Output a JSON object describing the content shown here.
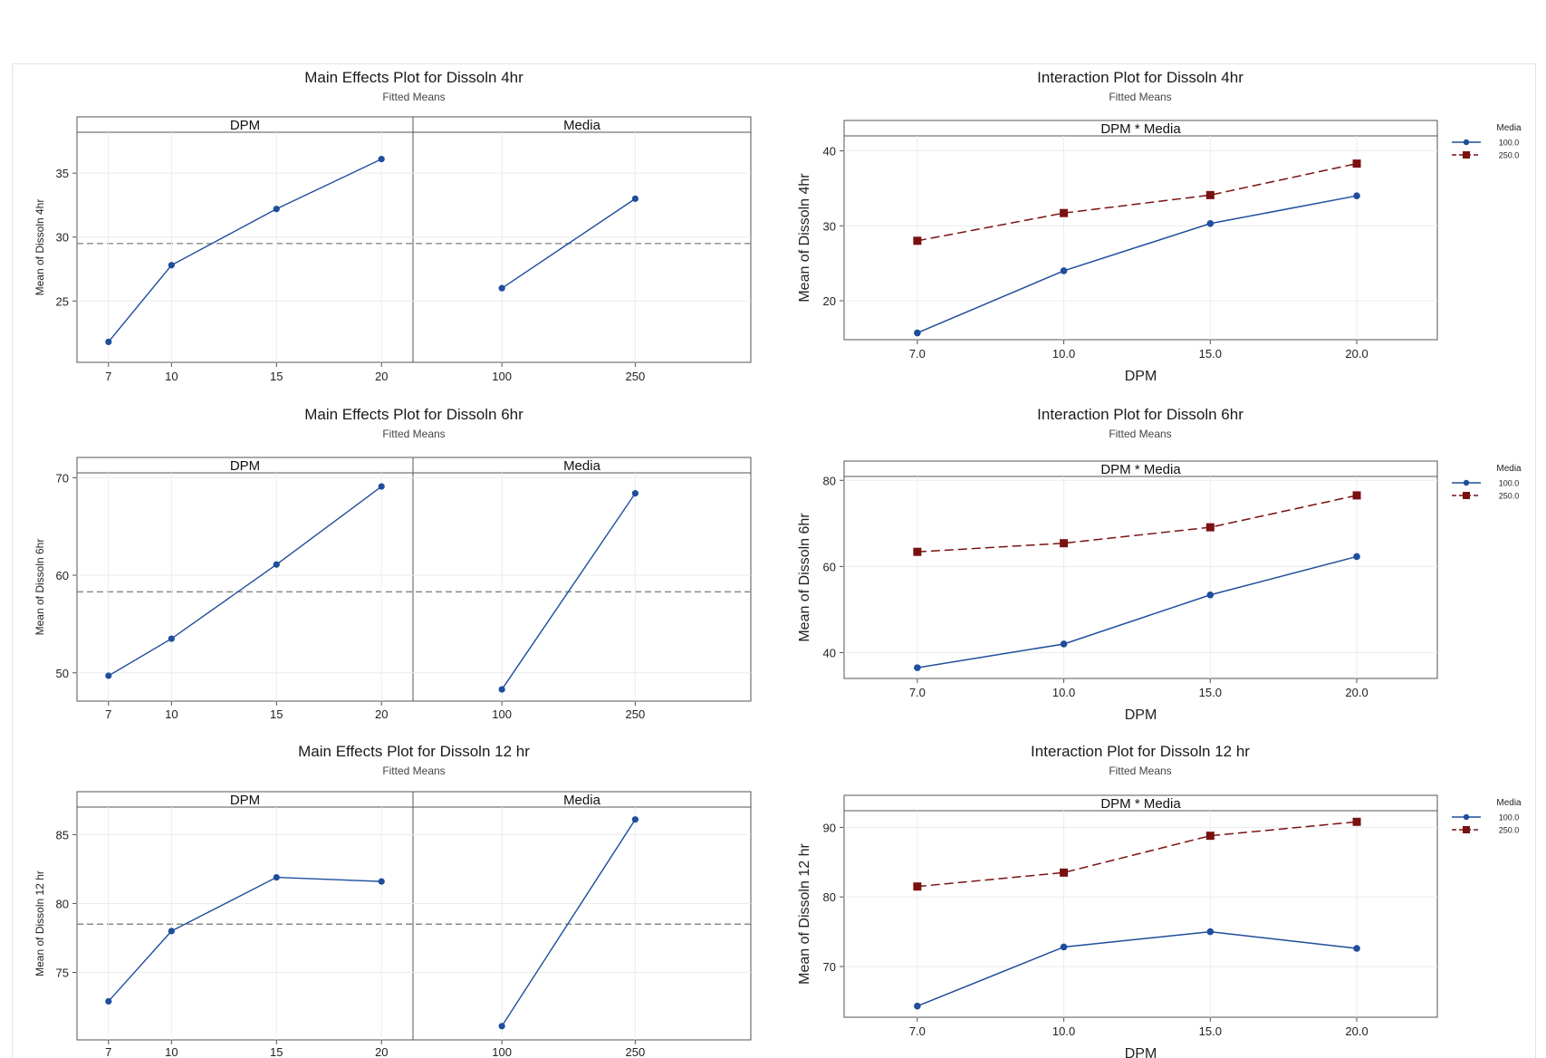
{
  "chart_data": [
    {
      "type": "line",
      "kind": "main_effects",
      "title": "Main Effects Plot for Dissoln 4hr",
      "subtitle": "Fitted Means",
      "ylabel": "Mean of Dissoln 4hr",
      "ylim": [
        20.2,
        38.2
      ],
      "yticks": [
        25,
        30,
        35
      ],
      "grand_mean": 29.5,
      "panels": [
        {
          "label": "DPM",
          "x": [
            7,
            10,
            15,
            20
          ],
          "xlim": [
            5.5,
            21.5
          ],
          "xtick_labels": [
            "7",
            "10",
            "15",
            "20"
          ],
          "values": [
            21.8,
            27.8,
            32.2,
            36.1
          ]
        },
        {
          "label": "Media",
          "x": [
            100,
            250
          ],
          "xlim": [
            0,
            380
          ],
          "xtick_labels": [
            "100",
            "250"
          ],
          "values": [
            26.0,
            33.0
          ]
        }
      ],
      "line_color": "#1f4e9c"
    },
    {
      "type": "line",
      "kind": "interaction",
      "title": "Interaction Plot for Dissoln 4hr",
      "subtitle": "Fitted Means",
      "panel_label": "DPM * Media",
      "xlabel": "DPM",
      "ylabel": "Mean of Dissoln 4hr",
      "ylim": [
        14.8,
        42.0
      ],
      "yticks": [
        20,
        30,
        40
      ],
      "categories": [
        "7.0",
        "10.0",
        "15.0",
        "20.0"
      ],
      "legend_title": "Media",
      "series": [
        {
          "name": "100.0",
          "values": [
            15.7,
            24.0,
            30.3,
            34.0
          ],
          "color": "#1f4e9c",
          "marker": "circle",
          "dash": false
        },
        {
          "name": "250.0",
          "values": [
            28.0,
            31.7,
            34.1,
            38.3
          ],
          "color": "#7a1111",
          "marker": "square",
          "dash": true
        }
      ]
    },
    {
      "type": "line",
      "kind": "main_effects",
      "title": "Main Effects Plot for Dissoln 6hr",
      "subtitle": "Fitted Means",
      "ylabel": "Mean of Dissoln 6hr",
      "ylim": [
        47.1,
        70.5
      ],
      "yticks": [
        50,
        60,
        70
      ],
      "grand_mean": 58.3,
      "panels": [
        {
          "label": "DPM",
          "x": [
            7,
            10,
            15,
            20
          ],
          "xlim": [
            5.5,
            21.5
          ],
          "xtick_labels": [
            "7",
            "10",
            "15",
            "20"
          ],
          "values": [
            49.7,
            53.5,
            61.1,
            69.1
          ]
        },
        {
          "label": "Media",
          "x": [
            100,
            250
          ],
          "xlim": [
            0,
            380
          ],
          "xtick_labels": [
            "100",
            "250"
          ],
          "values": [
            48.3,
            68.4
          ]
        }
      ],
      "line_color": "#1f4e9c"
    },
    {
      "type": "line",
      "kind": "interaction",
      "title": "Interaction Plot for Dissoln 6hr",
      "subtitle": "Fitted Means",
      "panel_label": "DPM * Media",
      "xlabel": "DPM",
      "ylabel": "Mean of Dissoln 6hr",
      "ylim": [
        34.0,
        80.9
      ],
      "yticks": [
        40,
        60,
        80
      ],
      "categories": [
        "7.0",
        "10.0",
        "15.0",
        "20.0"
      ],
      "legend_title": "Media",
      "series": [
        {
          "name": "100.0",
          "values": [
            36.5,
            42.0,
            53.4,
            62.3
          ],
          "color": "#1f4e9c",
          "marker": "circle",
          "dash": false
        },
        {
          "name": "250.0",
          "values": [
            63.4,
            65.4,
            69.1,
            76.5
          ],
          "color": "#7a1111",
          "marker": "square",
          "dash": true
        }
      ]
    },
    {
      "type": "line",
      "kind": "main_effects",
      "title": "Main Effects Plot for Dissoln 12 hr",
      "subtitle": "Fitted Means",
      "ylabel": "Mean of Dissoln 12 hr",
      "ylim": [
        70.1,
        87.0
      ],
      "yticks": [
        75,
        80,
        85
      ],
      "grand_mean": 78.5,
      "panels": [
        {
          "label": "DPM",
          "x": [
            7,
            10,
            15,
            20
          ],
          "xlim": [
            5.5,
            21.5
          ],
          "xtick_labels": [
            "7",
            "10",
            "15",
            "20"
          ],
          "values": [
            72.9,
            78.0,
            81.9,
            81.6
          ]
        },
        {
          "label": "Media",
          "x": [
            100,
            250
          ],
          "xlim": [
            0,
            380
          ],
          "xtick_labels": [
            "100",
            "250"
          ],
          "values": [
            71.1,
            86.1
          ]
        }
      ],
      "line_color": "#1f4e9c"
    },
    {
      "type": "line",
      "kind": "interaction",
      "title": "Interaction Plot for Dissoln 12 hr",
      "subtitle": "Fitted Means",
      "panel_label": "DPM * Media",
      "xlabel": "DPM",
      "ylabel": "Mean of Dissoln 12 hr",
      "ylim": [
        62.7,
        92.4
      ],
      "yticks": [
        70,
        80,
        90
      ],
      "categories": [
        "7.0",
        "10.0",
        "15.0",
        "20.0"
      ],
      "legend_title": "Media",
      "series": [
        {
          "name": "100.0",
          "values": [
            64.3,
            72.8,
            75.0,
            72.6
          ],
          "color": "#1f4e9c",
          "marker": "circle",
          "dash": false
        },
        {
          "name": "250.0",
          "values": [
            81.5,
            83.5,
            88.8,
            90.8
          ],
          "color": "#7a1111",
          "marker": "square",
          "dash": true
        }
      ]
    }
  ]
}
